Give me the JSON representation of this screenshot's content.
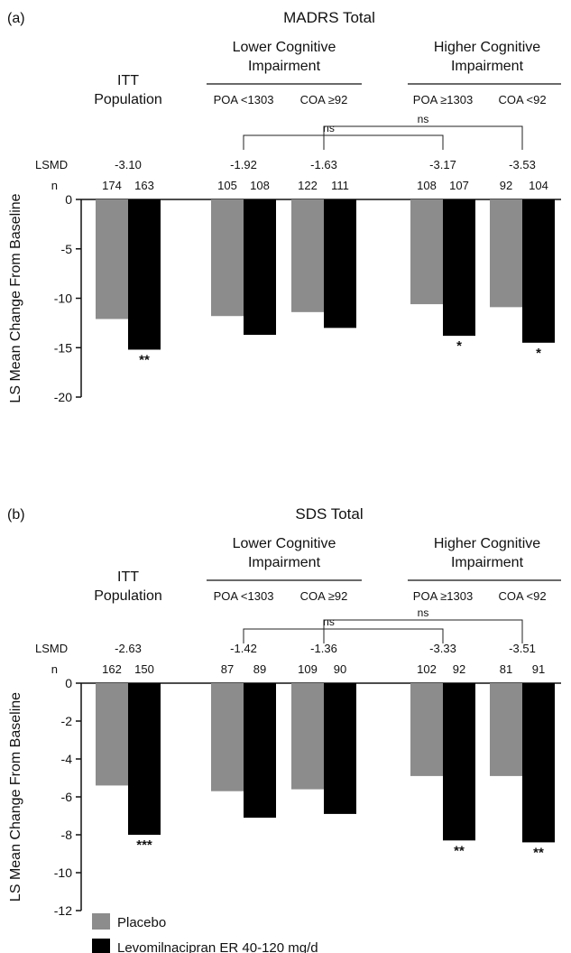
{
  "legend": {
    "placement": "bottom-left",
    "entries": [
      {
        "label": "Placebo",
        "color": "#8c8c8c"
      },
      {
        "label": "Levomilnacipran ER 40-120 mg/d",
        "color": "#000000"
      }
    ]
  },
  "chart_data": [
    {
      "type": "bar",
      "panel_label": "(a)",
      "title": "MADRS Total",
      "ylabel": "LS Mean Change From Baseline",
      "ylim": [
        -20,
        0
      ],
      "yticks": [
        0,
        -5,
        -10,
        -15,
        -20
      ],
      "row_labels": {
        "lsmd": "LSMD",
        "n": "n"
      },
      "groups": [
        {
          "header": [
            "ITT",
            "Population"
          ],
          "subgroups": [
            {
              "label": "",
              "lsmd": "-3.10",
              "n": [
                "174",
                "163"
              ],
              "values": [
                -12.1,
                -15.2
              ],
              "sig": "**"
            }
          ]
        },
        {
          "header": [
            "Lower Cognitive",
            "Impairment"
          ],
          "subgroups": [
            {
              "label": "POA <1303",
              "lsmd": "-1.92",
              "n": [
                "105",
                "108"
              ],
              "values": [
                -11.8,
                -13.7
              ],
              "sig": ""
            },
            {
              "label": "COA ≥92",
              "lsmd": "-1.63",
              "n": [
                "122",
                "111"
              ],
              "values": [
                -11.4,
                -13.0
              ],
              "sig": ""
            }
          ]
        },
        {
          "header": [
            "Higher Cognitive",
            "Impairment"
          ],
          "subgroups": [
            {
              "label": "POA ≥1303",
              "lsmd": "-3.17",
              "n": [
                "108",
                "107"
              ],
              "values": [
                -10.6,
                -13.8
              ],
              "sig": "*"
            },
            {
              "label": "COA <92",
              "lsmd": "-3.53",
              "n": [
                "92",
                "104"
              ],
              "values": [
                -10.9,
                -14.5
              ],
              "sig": "*"
            }
          ]
        }
      ],
      "comparisons": [
        {
          "label": "ns",
          "from": "POA <1303",
          "to": "POA ≥1303"
        },
        {
          "label": "ns",
          "from": "COA ≥92",
          "to": "COA <92"
        }
      ]
    },
    {
      "type": "bar",
      "panel_label": "(b)",
      "title": "SDS Total",
      "ylabel": "LS Mean Change From Baseline",
      "ylim": [
        -12,
        0
      ],
      "yticks": [
        0,
        -2,
        -4,
        -6,
        -8,
        -10,
        -12
      ],
      "row_labels": {
        "lsmd": "LSMD",
        "n": "n"
      },
      "groups": [
        {
          "header": [
            "ITT",
            "Population"
          ],
          "subgroups": [
            {
              "label": "",
              "lsmd": "-2.63",
              "n": [
                "162",
                "150"
              ],
              "values": [
                -5.4,
                -8.0
              ],
              "sig": "***"
            }
          ]
        },
        {
          "header": [
            "Lower Cognitive",
            "Impairment"
          ],
          "subgroups": [
            {
              "label": "POA <1303",
              "lsmd": "-1.42",
              "n": [
                "87",
                "89"
              ],
              "values": [
                -5.7,
                -7.1
              ],
              "sig": ""
            },
            {
              "label": "COA ≥92",
              "lsmd": "-1.36",
              "n": [
                "109",
                "90"
              ],
              "values": [
                -5.6,
                -6.9
              ],
              "sig": ""
            }
          ]
        },
        {
          "header": [
            "Higher Cognitive",
            "Impairment"
          ],
          "subgroups": [
            {
              "label": "POA ≥1303",
              "lsmd": "-3.33",
              "n": [
                "102",
                "92"
              ],
              "values": [
                -4.9,
                -8.3
              ],
              "sig": "**"
            },
            {
              "label": "COA <92",
              "lsmd": "-3.51",
              "n": [
                "81",
                "91"
              ],
              "values": [
                -4.9,
                -8.4
              ],
              "sig": "**"
            }
          ]
        }
      ],
      "comparisons": [
        {
          "label": "ns",
          "from": "POA <1303",
          "to": "POA ≥1303"
        },
        {
          "label": "ns",
          "from": "COA ≥92",
          "to": "COA <92"
        }
      ]
    }
  ]
}
